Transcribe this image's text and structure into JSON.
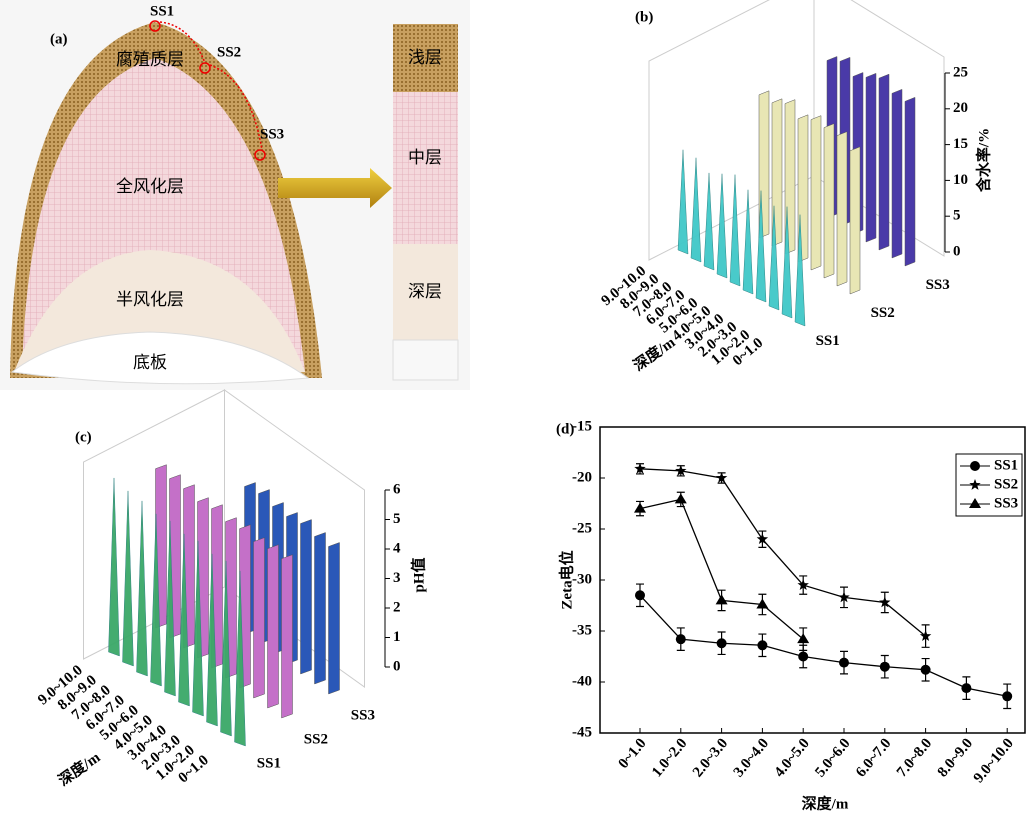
{
  "diagram": {
    "label": "(a)",
    "points": [
      "SS1",
      "SS2",
      "SS3"
    ],
    "layers": [
      "腐殖质层",
      "全风化层",
      "半风化层",
      "底板"
    ],
    "column": [
      "浅层",
      "中层",
      "深层"
    ]
  },
  "chart_data": [
    {
      "type": "bar3d",
      "panel_label": "(b)",
      "zlabel": "含水率/%",
      "xlabel": "深度/m",
      "categories": [
        "0~1.0",
        "1.0~2.0",
        "2.0~3.0",
        "3.0~4.0",
        "4.0~5.0",
        "5.0~6.0",
        "6.0~7.0",
        "7.0~8.0",
        "8.0~9.0",
        "9.0~10.0"
      ],
      "series": [
        {
          "name": "SS1",
          "color": "#40c8c8",
          "values": [
            15,
            15,
            14,
            15,
            14,
            15,
            14,
            13,
            14,
            14
          ]
        },
        {
          "name": "SS2",
          "color": "#e8e6b4",
          "values": [
            20,
            21,
            21,
            21,
            20,
            21,
            20,
            20,
            null,
            null
          ]
        },
        {
          "name": "SS3",
          "color": "#4a3aa8",
          "values": [
            23,
            23,
            24,
            23,
            22,
            23,
            22,
            null,
            null,
            null
          ]
        }
      ],
      "zlim": [
        0,
        25
      ],
      "zticks": [
        0,
        5,
        10,
        15,
        20,
        25
      ]
    },
    {
      "type": "bar3d",
      "panel_label": "(c)",
      "zlabel": "pH值",
      "xlabel": "深度/m",
      "categories": [
        "0~1.0",
        "1.0~2.0",
        "2.0~3.0",
        "3.0~4.0",
        "4.0~5.0",
        "5.0~6.0",
        "6.0~7.0",
        "7.0~8.0",
        "8.0~9.0",
        "9.0~10.0"
      ],
      "series": [
        {
          "name": "SS1",
          "color": "#3aa868",
          "values": [
            5.8,
            5.8,
            5.7,
            5.8,
            5.7,
            5.8,
            5.7,
            5.8,
            5.8,
            5.9
          ]
        },
        {
          "name": "SS2",
          "color": "#c470c8",
          "values": [
            5.4,
            5.4,
            5.3,
            5.4,
            5.3,
            5.4,
            5.3,
            5.4,
            5.4,
            5.4
          ]
        },
        {
          "name": "SS3",
          "color": "#2a58b8",
          "values": [
            5.0,
            5.0,
            5.1,
            5.0,
            5.0,
            5.1,
            5.0,
            null,
            null,
            null
          ]
        }
      ],
      "zlim": [
        0,
        6
      ],
      "zticks": [
        0,
        1,
        2,
        3,
        4,
        5,
        6
      ]
    },
    {
      "type": "line",
      "panel_label": "(d)",
      "ylabel": "Zeta电位",
      "xlabel": "深度/m",
      "categories": [
        "0~1.0",
        "1.0~2.0",
        "2.0~3.0",
        "3.0~4.0",
        "4.0~5.0",
        "5.0~6.0",
        "6.0~7.0",
        "7.0~8.0",
        "8.0~9.0",
        "9.0~10.0"
      ],
      "series": [
        {
          "name": "SS1",
          "marker": "circle",
          "color": "#000000",
          "values": [
            -31.5,
            -35.8,
            -36.2,
            -36.4,
            -37.5,
            -38.1,
            -38.5,
            -38.8,
            -40.6,
            -41.4
          ],
          "errors": [
            1.1,
            1.1,
            1.1,
            1.1,
            1.1,
            1.1,
            1.1,
            1.1,
            1.1,
            1.2
          ]
        },
        {
          "name": "SS2",
          "marker": "star",
          "color": "#000000",
          "values": [
            -19.1,
            -19.3,
            -20.0,
            -26.0,
            -30.5,
            -31.7,
            -32.2,
            -35.5,
            null,
            null
          ],
          "errors": [
            0.5,
            0.5,
            0.5,
            0.8,
            0.9,
            1.0,
            1.0,
            1.1,
            null,
            null
          ]
        },
        {
          "name": "SS3",
          "marker": "triangle",
          "color": "#000000",
          "values": [
            -23.0,
            -22.1,
            -32.0,
            -32.4,
            -35.8,
            null,
            null,
            null,
            null,
            null
          ],
          "errors": [
            0.7,
            0.7,
            1.0,
            1.0,
            1.1,
            null,
            null,
            null,
            null,
            null
          ]
        }
      ],
      "ylim": [
        -45,
        -15
      ],
      "yticks": [
        -15,
        -20,
        -25,
        -30,
        -35,
        -40,
        -45
      ],
      "legend": "upper-right"
    }
  ]
}
